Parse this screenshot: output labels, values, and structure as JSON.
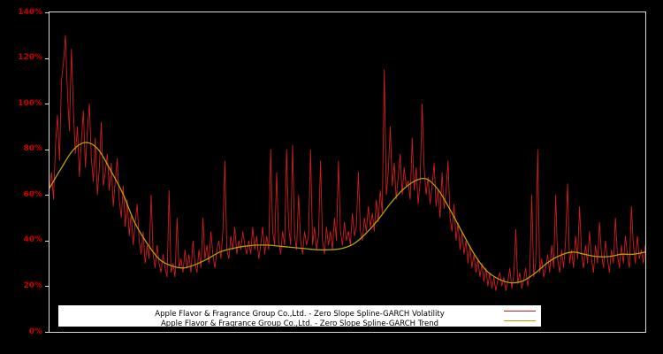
{
  "chart_data": {
    "type": "line",
    "title": "",
    "xlabel": "",
    "ylabel": "",
    "ylim": [
      0,
      140
    ],
    "y_ticks": [
      0,
      20,
      40,
      60,
      80,
      100,
      120,
      140
    ],
    "y_tick_suffix": "%",
    "grid": false,
    "legend_position": "bottom-center",
    "background_color": "#000000",
    "axis_label_color": "#cc0000",
    "plot_border_color": "#dcdcdc",
    "legend": {
      "bg_color": "#ffffff",
      "text_color": "#000000"
    },
    "series": [
      {
        "name": "Apple Flavor & Fragrance Group Co.,Ltd. - Zero Slope Spline-GARCH Volatility",
        "color": "#cf1d1d",
        "smooth": false,
        "values": [
          63,
          70,
          58,
          82,
          95,
          75,
          110,
          118,
          130,
          105,
          88,
          124,
          96,
          78,
          90,
          68,
          84,
          97,
          72,
          88,
          100,
          76,
          66,
          85,
          60,
          72,
          92,
          64,
          70,
          78,
          62,
          74,
          55,
          66,
          76,
          58,
          50,
          64,
          46,
          58,
          42,
          52,
          38,
          48,
          56,
          40,
          34,
          44,
          30,
          38,
          32,
          60,
          34,
          28,
          38,
          30,
          26,
          34,
          28,
          24,
          62,
          26,
          30,
          24,
          50,
          28,
          32,
          26,
          36,
          28,
          34,
          26,
          40,
          30,
          26,
          36,
          28,
          50,
          32,
          38,
          30,
          44,
          34,
          28,
          36,
          40,
          32,
          44,
          75,
          36,
          32,
          42,
          36,
          46,
          34,
          40,
          36,
          44,
          38,
          34,
          40,
          34,
          46,
          36,
          42,
          32,
          38,
          46,
          34,
          42,
          36,
          80,
          44,
          38,
          70,
          40,
          34,
          44,
          38,
          80,
          46,
          38,
          82,
          42,
          36,
          60,
          40,
          34,
          44,
          38,
          42,
          80,
          38,
          46,
          36,
          42,
          75,
          40,
          34,
          46,
          38,
          44,
          36,
          50,
          40,
          75,
          44,
          38,
          48,
          40,
          44,
          38,
          52,
          42,
          46,
          70,
          44,
          40,
          50,
          44,
          55,
          46,
          52,
          44,
          58,
          48,
          62,
          52,
          115,
          60,
          70,
          90,
          64,
          74,
          58,
          68,
          78,
          60,
          72,
          64,
          66,
          58,
          85,
          62,
          72,
          56,
          66,
          100,
          72,
          60,
          68,
          56,
          64,
          74,
          55,
          62,
          50,
          70,
          54,
          62,
          75,
          50,
          44,
          56,
          40,
          48,
          36,
          44,
          34,
          40,
          30,
          38,
          28,
          34,
          26,
          32,
          24,
          30,
          22,
          28,
          20,
          26,
          19,
          24,
          18,
          23,
          26,
          20,
          24,
          18,
          22,
          28,
          19,
          25,
          45,
          21,
          26,
          19,
          23,
          28,
          20,
          26,
          60,
          24,
          30,
          80,
          26,
          32,
          24,
          28,
          34,
          26,
          38,
          28,
          60,
          32,
          26,
          36,
          28,
          40,
          65,
          30,
          36,
          28,
          42,
          32,
          55,
          34,
          28,
          38,
          30,
          44,
          32,
          26,
          38,
          30,
          48,
          34,
          28,
          40,
          32,
          26,
          36,
          30,
          50,
          34,
          28,
          38,
          30,
          42,
          34,
          28,
          55,
          38,
          30,
          42,
          32,
          36,
          30,
          38
        ]
      },
      {
        "name": "Apple Flavor & Fragrance Group Co.,Ltd. - Zero Slope Spline-GARCH Trend",
        "color": "#b5a300",
        "smooth": true,
        "values": [
          63,
          72,
          80,
          83,
          80,
          71,
          61,
          48,
          39,
          32,
          29,
          28,
          29.5,
          32,
          35,
          36.5,
          37.5,
          38,
          38,
          37.5,
          37,
          36.5,
          36,
          36,
          36.5,
          38.5,
          43,
          49,
          56,
          62,
          66,
          67,
          62,
          53,
          43,
          33.5,
          26.5,
          23,
          21.5,
          22.5,
          26,
          30.5,
          33.5,
          35,
          34,
          33,
          33,
          34,
          34,
          35
        ]
      }
    ]
  }
}
